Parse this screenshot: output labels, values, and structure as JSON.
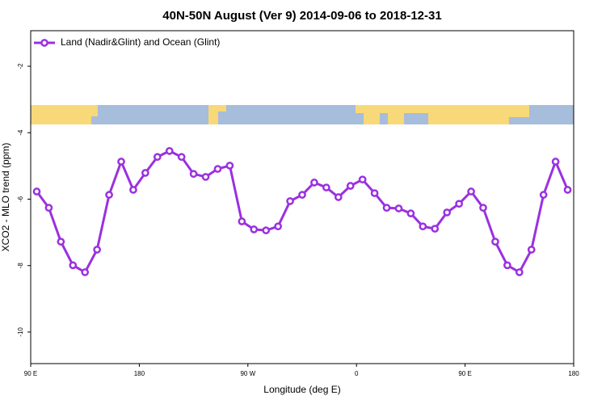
{
  "chart_data": {
    "type": "line",
    "title": "40N-50N August (Ver 9)   2014-09-06 to 2018-12-31",
    "xlabel": "Longitude (deg E)",
    "ylabel": "XCO2 - MLO trend (ppm)",
    "x": [
      95,
      105,
      115,
      125,
      135,
      145,
      155,
      165,
      175,
      185,
      195,
      205,
      215,
      225,
      235,
      245,
      255,
      265,
      275,
      285,
      295,
      305,
      315,
      325,
      335,
      345,
      355,
      365,
      375,
      385,
      395,
      405,
      415,
      425,
      435,
      445,
      455,
      465,
      475,
      485,
      495,
      505,
      515,
      525,
      535
    ],
    "series": [
      {
        "name": "Land (Nadir&Glint) and Ocean (Glint)",
        "color": "#9b30e0",
        "values": [
          -5.77,
          -6.26,
          -7.28,
          -7.99,
          -8.2,
          -7.52,
          -5.87,
          -4.87,
          -5.72,
          -5.21,
          -4.73,
          -4.55,
          -4.73,
          -5.24,
          -5.33,
          -5.09,
          -4.99,
          -6.67,
          -6.91,
          -6.94,
          -6.82,
          -6.06,
          -5.87,
          -5.5,
          -5.65,
          -5.94,
          -5.6,
          -5.41,
          -5.82,
          -6.26,
          -6.28,
          -6.43,
          -6.82,
          -6.89,
          -6.4,
          -6.14,
          -5.77,
          -6.26,
          -7.28,
          -7.99,
          -8.2,
          -7.52,
          -5.87,
          -4.87,
          -5.72
        ]
      }
    ],
    "xlim": [
      90,
      540
    ],
    "xticks": [
      {
        "value": 90,
        "label": "90 E"
      },
      180,
      {
        "value": 270,
        "label": "90 W"
      },
      {
        "value": 360,
        "label": "0"
      },
      {
        "value": 450,
        "label": "90 E"
      },
      {
        "value": 540,
        "label": "180"
      }
    ],
    "ylim": [
      -10.95,
      -0.93
    ],
    "yticks": [
      -2,
      -4,
      -6,
      -8,
      -10
    ],
    "legend": "top-left"
  }
}
